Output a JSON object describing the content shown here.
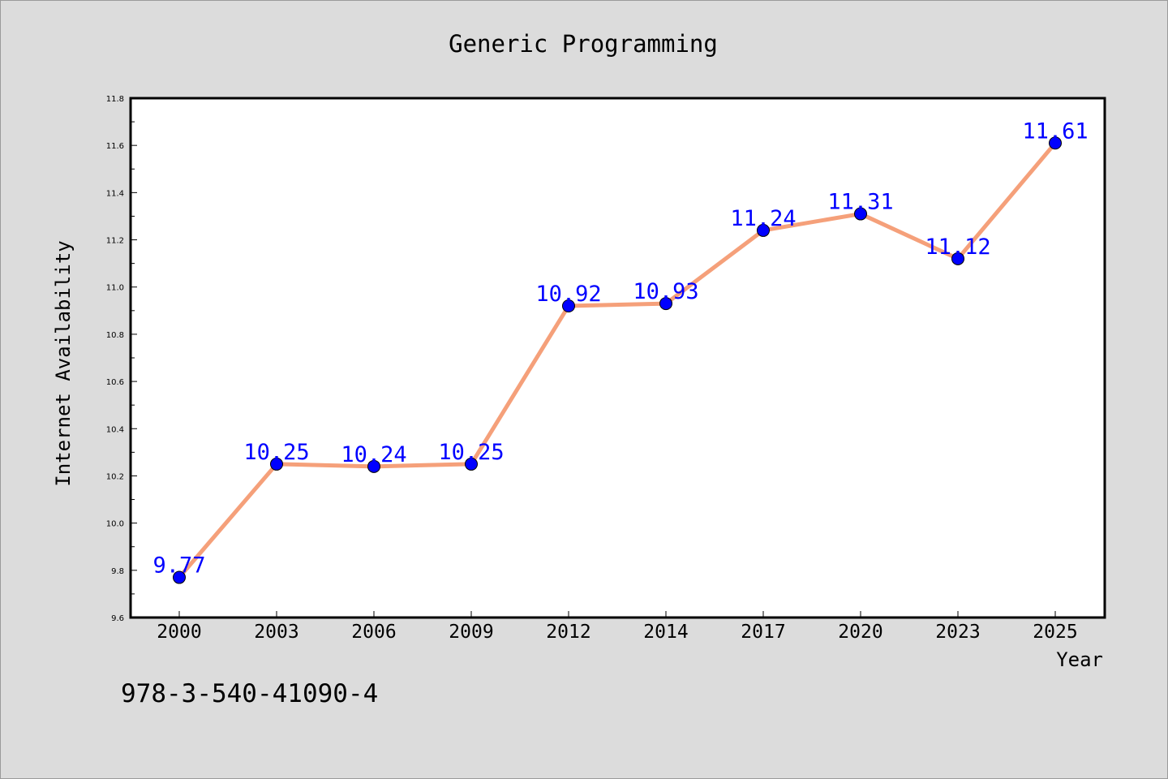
{
  "chart_data": {
    "type": "line",
    "title": "Generic Programming",
    "xlabel": "Year",
    "ylabel": "Internet Availability",
    "categories": [
      "2000",
      "2003",
      "2006",
      "2009",
      "2012",
      "2014",
      "2017",
      "2020",
      "2023",
      "2025"
    ],
    "series": [
      {
        "values": [
          9.77,
          10.25,
          10.24,
          10.25,
          10.92,
          10.93,
          11.24,
          11.31,
          11.12,
          11.61
        ],
        "labels": [
          "9.77",
          "10.25",
          "10.24",
          "10.25",
          "10.92",
          "10.93",
          "11.24",
          "11.31",
          "11.12",
          "11.61"
        ]
      }
    ],
    "ylim": [
      9.6,
      11.8
    ],
    "yticks": [
      "9.6",
      "9.8",
      "10.0",
      "10.2",
      "10.4",
      "10.6",
      "10.8",
      "11.0",
      "11.2",
      "11.4",
      "11.6",
      "11.8"
    ],
    "grid": false,
    "legend": false,
    "line_color": "#f5a07a",
    "marker_color": "#0000ff",
    "label_color": "#0000ff"
  },
  "footer": {
    "isbn": "978-3-540-41090-4"
  }
}
